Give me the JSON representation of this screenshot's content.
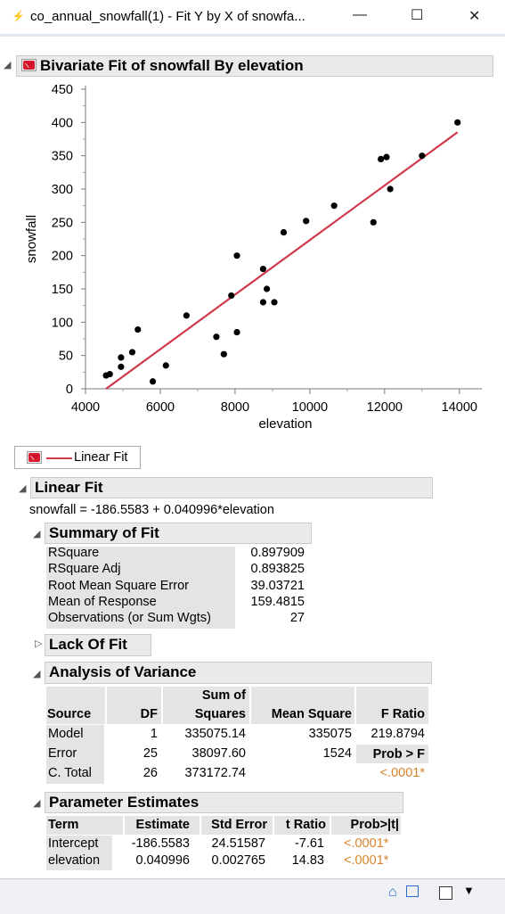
{
  "window": {
    "title": "co_annual_snowfall(1) - Fit Y by X of snowfa...",
    "minimize": "—",
    "maximize": "☐",
    "close": "✕"
  },
  "report": {
    "title": "Bivariate Fit of snowfall By elevation",
    "legend_label": "Linear Fit"
  },
  "chart_data": {
    "type": "scatter",
    "xlabel": "elevation",
    "ylabel": "snowfall",
    "xlim": [
      4000,
      14600
    ],
    "ylim": [
      0,
      450
    ],
    "x_ticks": [
      4000,
      6000,
      8000,
      10000,
      12000,
      14000
    ],
    "y_ticks": [
      0,
      50,
      100,
      150,
      200,
      250,
      300,
      350,
      400,
      450
    ],
    "points": [
      {
        "x": 4550,
        "y": 20
      },
      {
        "x": 4650,
        "y": 22
      },
      {
        "x": 4950,
        "y": 33
      },
      {
        "x": 4950,
        "y": 47
      },
      {
        "x": 5250,
        "y": 55
      },
      {
        "x": 5400,
        "y": 89
      },
      {
        "x": 5800,
        "y": 11
      },
      {
        "x": 6150,
        "y": 35
      },
      {
        "x": 6700,
        "y": 110
      },
      {
        "x": 7500,
        "y": 78
      },
      {
        "x": 7700,
        "y": 52
      },
      {
        "x": 7900,
        "y": 140
      },
      {
        "x": 8050,
        "y": 85
      },
      {
        "x": 8050,
        "y": 200
      },
      {
        "x": 8750,
        "y": 180
      },
      {
        "x": 8750,
        "y": 130
      },
      {
        "x": 8850,
        "y": 150
      },
      {
        "x": 9050,
        "y": 130
      },
      {
        "x": 9300,
        "y": 235
      },
      {
        "x": 9900,
        "y": 252
      },
      {
        "x": 10650,
        "y": 275
      },
      {
        "x": 11700,
        "y": 250
      },
      {
        "x": 11900,
        "y": 345
      },
      {
        "x": 12050,
        "y": 348
      },
      {
        "x": 12150,
        "y": 300
      },
      {
        "x": 13000,
        "y": 350
      },
      {
        "x": 13950,
        "y": 400
      }
    ],
    "fit_line": {
      "intercept": -186.5583,
      "slope": 0.040996,
      "x_range": [
        4550,
        13950
      ]
    },
    "point_color": "#000000",
    "line_color": "#d03a4a",
    "grid": false
  },
  "linear_fit": {
    "title": "Linear Fit",
    "equation": "snowfall = -186.5583 + 0.040996*elevation"
  },
  "summary_of_fit": {
    "title": "Summary of Fit",
    "rows": [
      {
        "label": "RSquare",
        "value": "0.897909"
      },
      {
        "label": "RSquare Adj",
        "value": "0.893825"
      },
      {
        "label": "Root Mean Square Error",
        "value": "39.03721"
      },
      {
        "label": "Mean of Response",
        "value": "159.4815"
      },
      {
        "label": "Observations (or Sum Wgts)",
        "value": "27"
      }
    ]
  },
  "lack_of_fit": {
    "title": "Lack Of Fit"
  },
  "anova": {
    "title": "Analysis of Variance",
    "headers": {
      "source": "Source",
      "df": "DF",
      "ss_top": "Sum of",
      "ss": "Squares",
      "ms": "Mean Square",
      "f": "F Ratio"
    },
    "rows": [
      {
        "source": "Model",
        "df": "1",
        "ss": "335075.14",
        "ms": "335075",
        "f": "219.8794"
      },
      {
        "source": "Error",
        "df": "25",
        "ss": "38097.60",
        "ms": "1524",
        "f": "Prob > F"
      },
      {
        "source": "C. Total",
        "df": "26",
        "ss": "373172.74",
        "ms": "",
        "f": "<.0001*"
      }
    ]
  },
  "parameter_estimates": {
    "title": "Parameter Estimates",
    "headers": {
      "term": "Term",
      "estimate": "Estimate",
      "stderr": "Std Error",
      "tratio": "t Ratio",
      "prob": "Prob>|t|"
    },
    "rows": [
      {
        "term": "Intercept",
        "estimate": "-186.5583",
        "stderr": "24.51587",
        "tratio": "-7.61",
        "prob": "<.0001*"
      },
      {
        "term": "elevation",
        "estimate": "0.040996",
        "stderr": "0.002765",
        "tratio": "14.83",
        "prob": "<.0001*"
      }
    ]
  },
  "statusbar": {
    "home_icon": "home-icon",
    "grid_icon": "table-icon",
    "checkbox_icon": "checkbox-icon",
    "dropdown_icon": "chevron-down-icon"
  }
}
